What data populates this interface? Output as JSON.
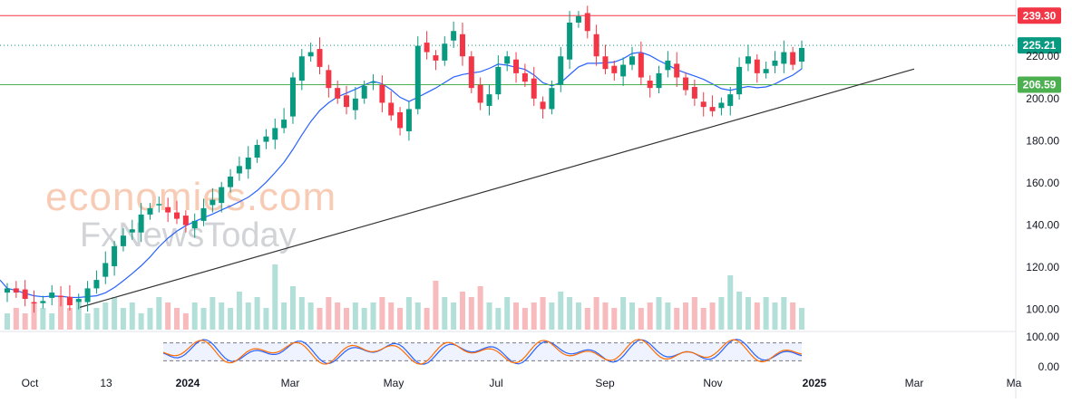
{
  "chart_data": {
    "type": "candlestick",
    "price_axis": {
      "ticks": [
        100,
        120,
        140,
        160,
        180,
        200,
        220
      ],
      "tick_labels": [
        "100.00",
        "120.00",
        "140.00",
        "160.00",
        "180.00",
        "200.00",
        "220.00"
      ],
      "range": [
        90,
        245
      ]
    },
    "time_axis": {
      "labels": [
        "Oct",
        "13",
        "2024",
        "Mar",
        "May",
        "Jul",
        "Sep",
        "Nov",
        "2025",
        "Mar",
        "Ma"
      ],
      "bold_labels": [
        "2024",
        "2025"
      ]
    },
    "horizontal_levels": [
      {
        "value": 239.3,
        "label": "239.30",
        "color": "#f23645",
        "style": "solid"
      },
      {
        "value": 225.21,
        "label": "225.21",
        "color": "#089981",
        "style": "dotted"
      },
      {
        "value": 206.59,
        "label": "206.59",
        "color": "#4caf50",
        "style": "solid"
      }
    ],
    "trendline": {
      "start": {
        "price": 101
      },
      "end": {
        "price": 214
      },
      "color": "#333333"
    },
    "moving_average_color": "#2962ff",
    "candle_up_color": "#089981",
    "candle_down_color": "#f23645",
    "close_path": [
      110,
      108,
      105,
      103,
      104,
      108,
      106,
      102,
      105,
      110,
      114,
      122,
      130,
      135,
      138,
      145,
      148,
      150,
      146,
      143,
      140,
      142,
      148,
      152,
      158,
      163,
      168,
      172,
      178,
      182,
      186,
      190,
      210,
      220,
      222,
      215,
      205,
      200,
      196,
      200,
      206,
      208,
      198,
      192,
      186,
      195,
      225,
      222,
      218,
      226,
      232,
      220,
      205,
      198,
      202,
      215,
      220,
      212,
      208,
      200,
      195,
      205,
      220,
      236,
      239,
      232,
      220,
      214,
      212,
      216,
      220,
      210,
      205,
      212,
      218,
      210,
      204,
      200,
      196,
      194,
      198,
      202,
      215,
      220,
      212,
      214,
      218,
      222,
      216,
      224
    ],
    "volume_path": [
      3,
      4,
      3,
      5,
      4,
      3,
      6,
      4,
      5,
      3,
      4,
      5,
      6,
      4,
      5,
      3,
      4,
      6,
      5,
      4,
      3,
      5,
      4,
      6,
      5,
      4,
      7,
      5,
      6,
      4,
      12,
      5,
      8,
      6,
      5,
      4,
      6,
      5,
      4,
      5,
      4,
      5,
      6,
      5,
      4,
      6,
      5,
      4,
      9,
      6,
      5,
      7,
      6,
      8,
      5,
      4,
      6,
      5,
      4,
      5,
      6,
      5,
      7,
      6,
      5,
      4,
      6,
      5,
      4,
      6,
      5,
      4,
      5,
      6,
      5,
      4,
      5,
      6,
      4,
      5,
      6,
      10,
      7,
      6,
      5,
      6,
      5,
      6,
      5,
      4
    ],
    "oscillator": {
      "ticks": [
        0,
        100
      ],
      "tick_labels": [
        "0.00",
        "100.00"
      ],
      "band": [
        20,
        80
      ],
      "k_color": "#2962ff",
      "d_color": "#ff6d00"
    }
  }
}
